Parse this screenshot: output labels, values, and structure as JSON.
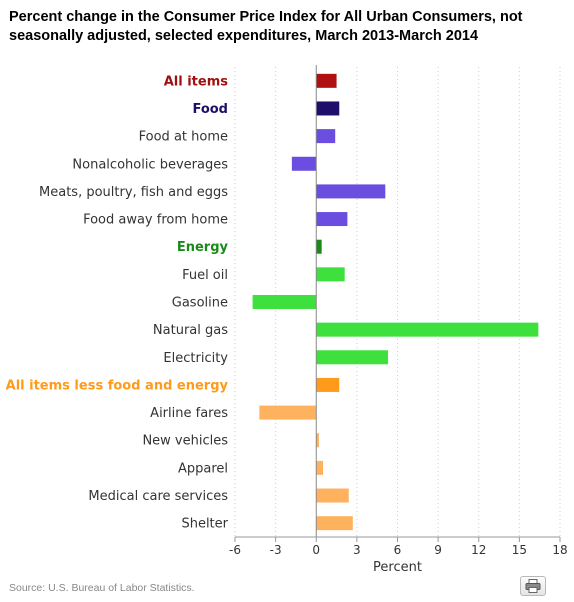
{
  "title": "Percent change in the Consumer Price Index for All Urban Consumers, not seasonally adjusted, selected expenditures, March 2013-March 2014",
  "source": "Source: U.S. Bureau of Labor Statistics.",
  "print_icon": "printer-icon",
  "chart_data": {
    "type": "bar",
    "orientation": "horizontal",
    "title": "Percent change in the Consumer Price Index for All Urban Consumers, not seasonally adjusted, selected expenditures, March 2013-March 2014",
    "xlabel": "Percent",
    "ylabel": "",
    "xlim": [
      -6,
      18
    ],
    "xticks": [
      -6,
      -3,
      0,
      3,
      6,
      9,
      12,
      15,
      18
    ],
    "grid": "vertical dotted",
    "categories": [
      {
        "label": "All items",
        "value": 1.5,
        "color": "#b01010",
        "label_color": "#a01010",
        "bold": true
      },
      {
        "label": "Food",
        "value": 1.7,
        "color": "#1f0f6b",
        "label_color": "#1f0f6b",
        "bold": true
      },
      {
        "label": "Food at home",
        "value": 1.4,
        "color": "#6b4ee0",
        "label_color": "#333333",
        "bold": false
      },
      {
        "label": "Nonalcoholic beverages",
        "value": -1.8,
        "color": "#6b4ee0",
        "label_color": "#333333",
        "bold": false
      },
      {
        "label": "Meats, poultry, fish and eggs",
        "value": 5.1,
        "color": "#6b4ee0",
        "label_color": "#333333",
        "bold": false
      },
      {
        "label": "Food away from home",
        "value": 2.3,
        "color": "#6b4ee0",
        "label_color": "#333333",
        "bold": false
      },
      {
        "label": "Energy",
        "value": 0.4,
        "color": "#1a8a1a",
        "label_color": "#1a8a1a",
        "bold": true
      },
      {
        "label": "Fuel oil",
        "value": 2.1,
        "color": "#3ee03e",
        "label_color": "#333333",
        "bold": false
      },
      {
        "label": "Gasoline",
        "value": -4.7,
        "color": "#3ee03e",
        "label_color": "#333333",
        "bold": false
      },
      {
        "label": "Natural gas",
        "value": 16.4,
        "color": "#3ee03e",
        "label_color": "#333333",
        "bold": false
      },
      {
        "label": "Electricity",
        "value": 5.3,
        "color": "#3ee03e",
        "label_color": "#333333",
        "bold": false
      },
      {
        "label": "All items less food and energy",
        "value": 1.7,
        "color": "#ff9a1a",
        "label_color": "#ff9a1a",
        "bold": true
      },
      {
        "label": "Airline fares",
        "value": -4.2,
        "color": "#ffb25e",
        "label_color": "#333333",
        "bold": false
      },
      {
        "label": "New vehicles",
        "value": 0.2,
        "color": "#ffb25e",
        "label_color": "#333333",
        "bold": false
      },
      {
        "label": "Apparel",
        "value": 0.5,
        "color": "#ffb25e",
        "label_color": "#333333",
        "bold": false
      },
      {
        "label": "Medical care services",
        "value": 2.4,
        "color": "#ffb25e",
        "label_color": "#333333",
        "bold": false
      },
      {
        "label": "Shelter",
        "value": 2.7,
        "color": "#ffb25e",
        "label_color": "#333333",
        "bold": false
      }
    ]
  }
}
